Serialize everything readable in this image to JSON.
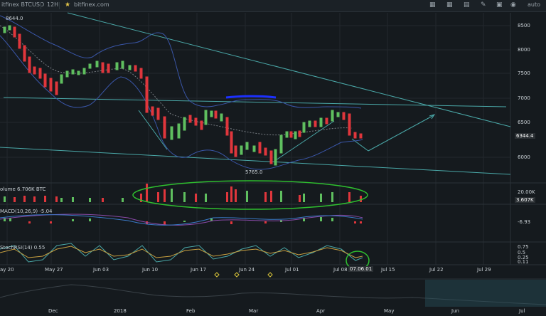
{
  "toolbar": {
    "symbol": "itfinex BTCUSD",
    "interval": "12H",
    "source": "bitfinex.com",
    "auto": "auto"
  },
  "chart": {
    "price_ticks": [
      "8500",
      "8000",
      "7500",
      "7000",
      "6500",
      "6000"
    ],
    "current_price": "6344.4",
    "high_label": "8644.0",
    "low_label": "5765.0",
    "volume_label": "olume 6.706K BTC",
    "volume_ticks": [
      "20.00K",
      "3.607K"
    ],
    "macd_label": "MACD(10,26,9) -5.04",
    "macd_value": "-6.93",
    "stoch_label": "StochRSI(14) 0.55",
    "stoch_ticks": [
      "0.75",
      "0.5",
      "0.25",
      "0.11"
    ],
    "date_ticks": [
      "ay 20",
      "May 27",
      "Jun 03",
      "Jun 10",
      "Jun 17",
      "Jun 24",
      "Jul 01",
      "Jul 08",
      "07.06.01",
      "Jul 15",
      "Jul 22",
      "Jul 29"
    ],
    "nav_ticks": [
      "Dec",
      "2018",
      "Feb",
      "Mar",
      "Apr",
      "May",
      "Jun",
      "Jul"
    ]
  },
  "colors": {
    "up": "#5fbf5f",
    "down": "#e0363c",
    "band": "#3a56a8",
    "trend": "#4aa8a8",
    "annotation": "#2fbf2f"
  }
}
